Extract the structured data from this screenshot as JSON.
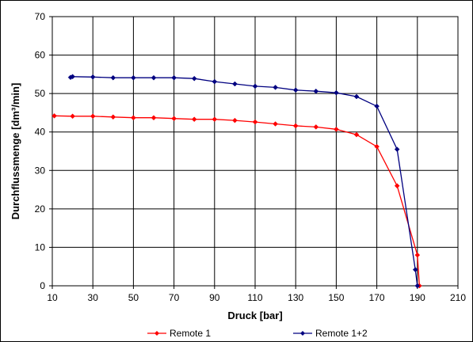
{
  "chart_data": {
    "type": "line",
    "xlabel": "Druck [bar]",
    "ylabel": "Durchflussmenge [dm³/min]",
    "xlim": [
      10,
      210
    ],
    "ylim": [
      0,
      70
    ],
    "x_ticks": [
      "10",
      "30",
      "50",
      "70",
      "90",
      "110",
      "130",
      "150",
      "170",
      "190",
      "210"
    ],
    "y_ticks": [
      "0",
      "10",
      "20",
      "30",
      "40",
      "50",
      "60",
      "70"
    ],
    "grid": true,
    "legend_position": "bottom",
    "series": [
      {
        "name": "Remote 1",
        "color": "#ff0000",
        "marker": "diamond",
        "points": [
          [
            11,
            44.2
          ],
          [
            20,
            44.1
          ],
          [
            30,
            44.1
          ],
          [
            40,
            43.9
          ],
          [
            50,
            43.7
          ],
          [
            60,
            43.7
          ],
          [
            70,
            43.5
          ],
          [
            80,
            43.3
          ],
          [
            90,
            43.3
          ],
          [
            100,
            43.0
          ],
          [
            110,
            42.6
          ],
          [
            120,
            42.1
          ],
          [
            130,
            41.6
          ],
          [
            140,
            41.3
          ],
          [
            150,
            40.7
          ],
          [
            160,
            39.3
          ],
          [
            170,
            36.2
          ],
          [
            180,
            26.0
          ],
          [
            190,
            8.0
          ],
          [
            191,
            0.0
          ]
        ]
      },
      {
        "name": "Remote 1+2",
        "color": "#000080",
        "marker": "diamond",
        "points": [
          [
            19,
            54.2
          ],
          [
            20,
            54.4
          ],
          [
            30,
            54.3
          ],
          [
            40,
            54.1
          ],
          [
            50,
            54.1
          ],
          [
            60,
            54.1
          ],
          [
            70,
            54.1
          ],
          [
            80,
            53.9
          ],
          [
            90,
            53.1
          ],
          [
            100,
            52.5
          ],
          [
            110,
            51.9
          ],
          [
            120,
            51.6
          ],
          [
            130,
            50.9
          ],
          [
            140,
            50.6
          ],
          [
            150,
            50.2
          ],
          [
            160,
            49.2
          ],
          [
            170,
            46.7
          ],
          [
            180,
            35.5
          ],
          [
            189,
            4.2
          ],
          [
            190,
            0.0
          ]
        ]
      }
    ]
  }
}
